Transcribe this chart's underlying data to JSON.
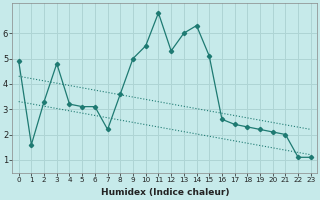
{
  "xlabel": "Humidex (Indice chaleur)",
  "background_color": "#c6eaea",
  "grid_color": "#aed4d4",
  "line_color": "#1e7a72",
  "series1_x": [
    0,
    1,
    2,
    3,
    4,
    5,
    6,
    7,
    8,
    9,
    10,
    11,
    12,
    13,
    14,
    15,
    16,
    17,
    18,
    19,
    20,
    21,
    22,
    23
  ],
  "series1_y": [
    4.9,
    1.6,
    3.3,
    4.8,
    3.2,
    3.1,
    3.1,
    2.2,
    3.6,
    5.0,
    5.5,
    6.8,
    5.3,
    6.0,
    6.3,
    5.1,
    2.6,
    2.4,
    2.3,
    2.2,
    2.1,
    2.0,
    1.1,
    1.1
  ],
  "trend_x": [
    0,
    23
  ],
  "trend_y": [
    4.3,
    2.2
  ],
  "trend2_x": [
    0,
    23
  ],
  "trend2_y": [
    3.3,
    1.2
  ],
  "ylim": [
    0.5,
    7.2
  ],
  "xlim": [
    -0.5,
    23.5
  ],
  "xticks": [
    0,
    1,
    2,
    3,
    4,
    5,
    6,
    7,
    8,
    9,
    10,
    11,
    12,
    13,
    14,
    15,
    16,
    17,
    18,
    19,
    20,
    21,
    22,
    23
  ],
  "yticks": [
    1,
    2,
    3,
    4,
    5,
    6
  ]
}
